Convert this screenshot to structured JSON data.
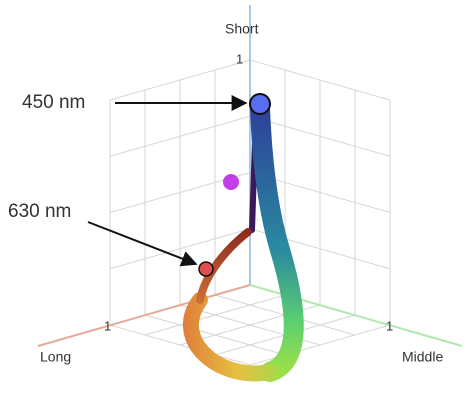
{
  "axes": {
    "short": {
      "label": "Short",
      "tick": "1"
    },
    "long": {
      "label": "Long",
      "tick": "1"
    },
    "middle": {
      "label": "Middle",
      "tick": "1"
    }
  },
  "annotations": [
    {
      "label": "450 nm"
    },
    {
      "label": "630 nm"
    }
  ]
}
